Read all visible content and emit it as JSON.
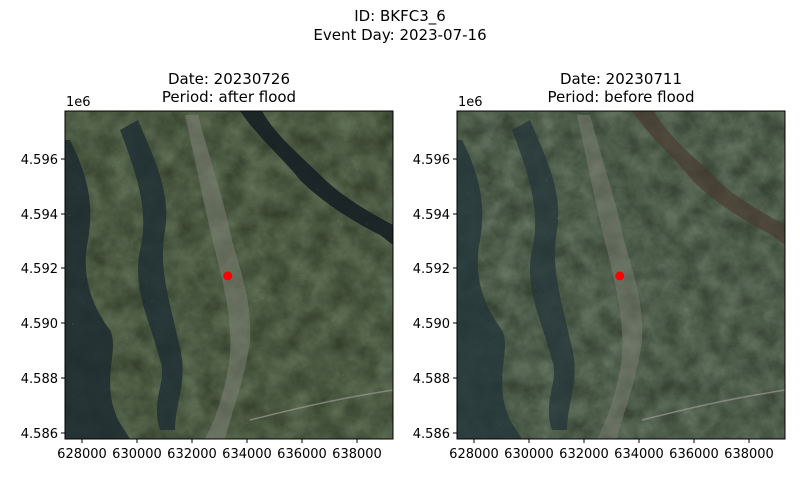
{
  "figure": {
    "title_line1": "ID: BKFC3_6",
    "title_line2": "Event Day: 2023-07-16"
  },
  "panels": [
    {
      "title_line1": "Date: 20230726",
      "title_line2": "Period: after flood",
      "y_offset_label": "1e6"
    },
    {
      "title_line1": "Date: 20230711",
      "title_line2": "Period: before flood",
      "y_offset_label": "1e6"
    }
  ],
  "axes": {
    "x_ticks": [
      "628000",
      "630000",
      "632000",
      "634000",
      "636000",
      "638000"
    ],
    "y_ticks": [
      "4.596",
      "4.594",
      "4.592",
      "4.590",
      "4.588",
      "4.586"
    ]
  },
  "marker": {
    "color": "#ff0000",
    "x": 633300,
    "y": 4591750
  },
  "colors": {
    "land": "#2f3a26",
    "water": "#1c2a2f",
    "urban": "#8e8f86"
  }
}
